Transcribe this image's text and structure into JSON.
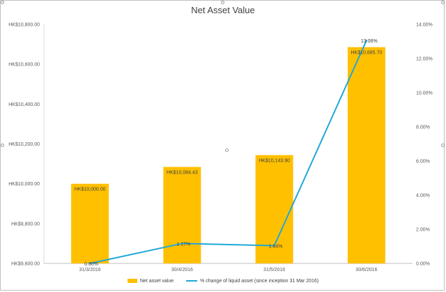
{
  "chart_data": {
    "type": "bar",
    "title": "Net Asset Value",
    "categories": [
      "31/3/2016",
      "30/4/2016",
      "31/5/2016",
      "30/6/2016"
    ],
    "series": [
      {
        "name": "Net asset value",
        "type": "bar",
        "axis": "left",
        "values": [
          10000.0,
          10084.43,
          10143.9,
          10685.7
        ],
        "labels": [
          "HK$10,000.00",
          "HK$10,084.43",
          "HK$10,143.90",
          "HK$10,685.70"
        ],
        "color": "#ffc000"
      },
      {
        "name": "% change of liquid asset (since inception 31 Mar 2016)",
        "type": "line",
        "axis": "right",
        "values": [
          0.0,
          1.17,
          1.04,
          13.06
        ],
        "labels": [
          "0.00%",
          "1.17%",
          "1.04%",
          "13.06%"
        ],
        "color": "#1fa8d8"
      }
    ],
    "y_left": {
      "ylim": [
        9600,
        10800
      ],
      "ticks": [
        9600,
        9800,
        10000,
        10200,
        10400,
        10600,
        10800
      ],
      "tick_labels": [
        "HK$9,600.00",
        "HK$9,800.00",
        "HK$10,000.00",
        "HK$10,200.00",
        "HK$10,400.00",
        "HK$10,600.00",
        "HK$10,800.00"
      ]
    },
    "y_right": {
      "ylim": [
        0,
        14
      ],
      "ticks": [
        0,
        2,
        4,
        6,
        8,
        10,
        12,
        14
      ],
      "tick_labels": [
        "0.00%",
        "2.00%",
        "4.00%",
        "6.00%",
        "8.00%",
        "10.00%",
        "12.00%",
        "14.00%"
      ]
    },
    "grid": false,
    "legend_position": "bottom"
  }
}
